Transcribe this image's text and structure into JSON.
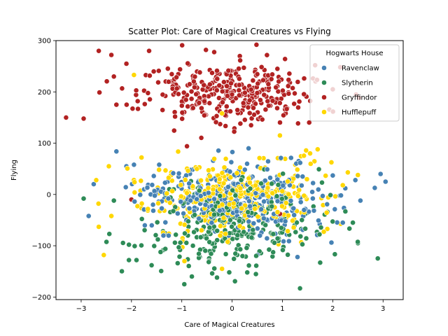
{
  "chart_data": {
    "type": "scatter",
    "title": "Scatter Plot: Care of Magical Creatures vs Flying",
    "xlabel": "Care of Magical Creatures",
    "ylabel": "Flying",
    "xlim": [
      -3.5,
      3.4
    ],
    "ylim": [
      -205,
      300
    ],
    "xticks": [
      -3,
      -2,
      -1,
      0,
      1,
      2,
      3
    ],
    "yticks": [
      -200,
      -100,
      0,
      100,
      200,
      300
    ],
    "grid": false,
    "legend": {
      "title": "Hogwarts House",
      "position": "top-right"
    },
    "series": [
      {
        "name": "Ravenclaw",
        "color": "#4682b4",
        "x_center": 0.0,
        "x_spread": 0.85,
        "y_center": -10,
        "y_spread": 32,
        "count": 330,
        "seed": 11,
        "points": [
          [
            -2.3,
            84
          ],
          [
            -1.95,
            58
          ],
          [
            -2.1,
            55
          ],
          [
            -2.75,
            20
          ],
          [
            -2.85,
            -42
          ],
          [
            3.05,
            25
          ],
          [
            2.95,
            40
          ],
          [
            2.45,
            28
          ],
          [
            2.0,
            37
          ],
          [
            2.25,
            12
          ],
          [
            2.2,
            -55
          ],
          [
            2.55,
            -12
          ],
          [
            -1.45,
            58
          ],
          [
            1.3,
            -122
          ],
          [
            0.5,
            -118
          ]
        ]
      },
      {
        "name": "Slytherin",
        "color": "#2e8b57",
        "x_center": 0.0,
        "x_spread": 0.85,
        "y_center": -60,
        "y_spread": 40,
        "count": 300,
        "seed": 23,
        "points": [
          [
            -2.95,
            -8
          ],
          [
            -2.35,
            -12
          ],
          [
            -1.6,
            -138
          ],
          [
            -0.95,
            -175
          ],
          [
            -0.8,
            -160
          ],
          [
            -0.3,
            -162
          ],
          [
            1.35,
            -183
          ],
          [
            2.5,
            -95
          ],
          [
            2.4,
            -55
          ],
          [
            -2.05,
            -128
          ],
          [
            -1.9,
            -128
          ],
          [
            -2.05,
            -98
          ],
          [
            1.75,
            -133
          ],
          [
            0.3,
            -152
          ]
        ]
      },
      {
        "name": "Gryffindor",
        "color": "#b22222",
        "x_center": 0.0,
        "x_spread": 0.9,
        "y_center": 200,
        "y_spread": 32,
        "count": 330,
        "seed": 37,
        "points": [
          [
            -3.3,
            150
          ],
          [
            -2.95,
            148
          ],
          [
            -2.65,
            280
          ],
          [
            -2.4,
            272
          ],
          [
            -2.35,
            230
          ],
          [
            -2.3,
            175
          ],
          [
            -2.1,
            255
          ],
          [
            -1.65,
            280
          ],
          [
            1.65,
            252
          ],
          [
            2.15,
            248
          ],
          [
            2.0,
            205
          ],
          [
            -2.0,
            -10
          ],
          [
            0.95,
            -38
          ],
          [
            1.4,
            -40
          ],
          [
            -0.4,
            -38
          ]
        ]
      },
      {
        "name": "Hufflepuff",
        "color": "#ffd700",
        "x_center": 0.0,
        "x_spread": 0.9,
        "y_center": -10,
        "y_spread": 35,
        "count": 330,
        "seed": 53,
        "points": [
          [
            -2.45,
            55
          ],
          [
            -2.7,
            28
          ],
          [
            -2.65,
            -63
          ],
          [
            -2.55,
            -118
          ],
          [
            -2.4,
            -42
          ],
          [
            2.5,
            38
          ],
          [
            2.3,
            43
          ],
          [
            1.7,
            88
          ],
          [
            -1.95,
            233
          ],
          [
            -0.2,
            158
          ],
          [
            0.95,
            115
          ],
          [
            -0.2,
            -145
          ],
          [
            2.2,
            18
          ],
          [
            -1.8,
            72
          ],
          [
            1.55,
            80
          ]
        ]
      }
    ]
  }
}
